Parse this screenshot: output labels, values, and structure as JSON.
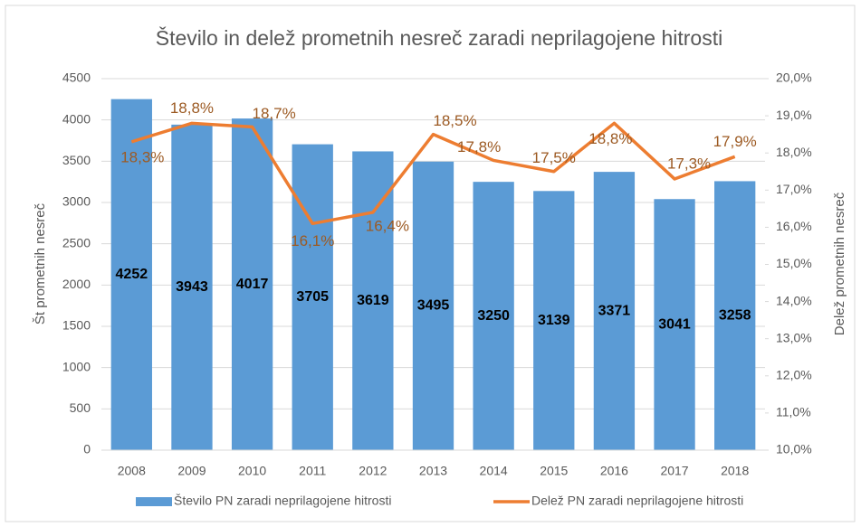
{
  "chart_data": {
    "type": "combo",
    "title": "Število in delež prometnih nesreč zaradi neprilagojene hitrosti",
    "y_label": "Št prometnih nesreč",
    "y2_label": "Delež prometnih nesreč",
    "categories": [
      "2008",
      "2009",
      "2010",
      "2011",
      "2012",
      "2013",
      "2014",
      "2015",
      "2016",
      "2017",
      "2018"
    ],
    "series": [
      {
        "name": "Število PN zaradi neprilagojene hitrosti",
        "type": "bar",
        "color": "#5b9bd5",
        "values": [
          4252,
          3943,
          4017,
          3705,
          3619,
          3495,
          3250,
          3139,
          3371,
          3041,
          3258
        ]
      },
      {
        "name": "Delež PN zaradi neprilagojene hitrosti",
        "type": "line",
        "color": "#ed7d31",
        "axis": "y2",
        "values": [
          18.3,
          18.8,
          18.7,
          16.1,
          16.4,
          18.5,
          17.8,
          17.5,
          18.8,
          17.3,
          17.9
        ],
        "value_labels": [
          "18,3%",
          "18,8%",
          "18,7%",
          "16,1%",
          "16,4%",
          "18,5%",
          "17,8%",
          "17,5%",
          "18,8%",
          "17,3%",
          "17,9%"
        ]
      }
    ],
    "ylim": [
      0,
      4500
    ],
    "yticks": [
      0,
      500,
      1000,
      1500,
      2000,
      2500,
      3000,
      3500,
      4000,
      4500
    ],
    "y2lim": [
      10,
      20
    ],
    "y2ticks": [
      {
        "value": 10,
        "label": "10,0%"
      },
      {
        "value": 11,
        "label": "11,0%"
      },
      {
        "value": 12,
        "label": "12,0%"
      },
      {
        "value": 13,
        "label": "13,0%"
      },
      {
        "value": 14,
        "label": "14,0%"
      },
      {
        "value": 15,
        "label": "15,0%"
      },
      {
        "value": 16,
        "label": "16,0%"
      },
      {
        "value": 17,
        "label": "17,0%"
      },
      {
        "value": 18,
        "label": "18,0%"
      },
      {
        "value": 19,
        "label": "19,0%"
      },
      {
        "value": 20,
        "label": "20,0%"
      }
    ],
    "grid": true,
    "legend": "bottom"
  }
}
